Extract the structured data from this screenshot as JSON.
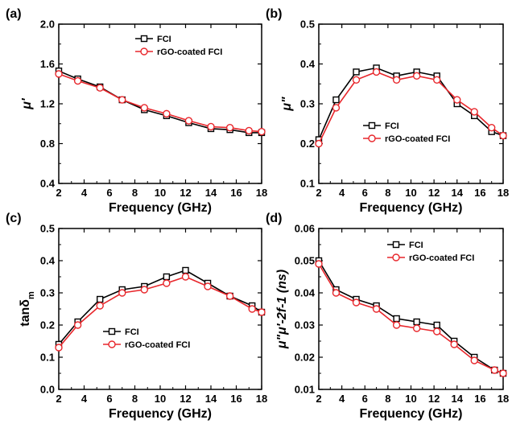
{
  "colors": {
    "fci": "#000000",
    "rgo": "#e8262b"
  },
  "chart_data": [
    {
      "panel": "(a)",
      "type": "line",
      "xlabel": "Frequency (GHz)",
      "ylabel": "μ'",
      "xlim": [
        2,
        18
      ],
      "ylim": [
        0.4,
        2.0
      ],
      "xticks": [
        "2",
        "4",
        "6",
        "8",
        "10",
        "12",
        "14",
        "16",
        "18"
      ],
      "yticks": [
        "0.4",
        "0.8",
        "1.2",
        "1.6",
        "2.0"
      ],
      "legend": "top-right",
      "series": [
        {
          "name": "FCI",
          "marker": "square",
          "x": [
            2,
            3.5,
            5.25,
            7,
            8.75,
            10.5,
            12.25,
            14,
            15.5,
            17,
            18
          ],
          "y": [
            1.53,
            1.45,
            1.37,
            1.24,
            1.14,
            1.08,
            1.01,
            0.95,
            0.94,
            0.91,
            0.91
          ]
        },
        {
          "name": "rGO-coated FCI",
          "marker": "circle",
          "x": [
            2,
            3.5,
            5.25,
            7,
            8.75,
            10.5,
            12.25,
            14,
            15.5,
            17,
            18
          ],
          "y": [
            1.5,
            1.43,
            1.36,
            1.24,
            1.16,
            1.1,
            1.03,
            0.97,
            0.96,
            0.93,
            0.92
          ]
        }
      ]
    },
    {
      "panel": "(b)",
      "type": "line",
      "xlabel": "Frequency (GHz)",
      "ylabel": "μ\"",
      "xlim": [
        2,
        18
      ],
      "ylim": [
        0.1,
        0.5
      ],
      "xticks": [
        "2",
        "4",
        "6",
        "8",
        "10",
        "12",
        "14",
        "16",
        "18"
      ],
      "yticks": [
        "0.1",
        "0.2",
        "0.3",
        "0.4",
        "0.5"
      ],
      "legend": "bottom-center",
      "series": [
        {
          "name": "FCI",
          "marker": "square",
          "x": [
            2,
            3.5,
            5.25,
            7,
            8.75,
            10.5,
            12.25,
            14,
            15.5,
            17,
            18
          ],
          "y": [
            0.21,
            0.31,
            0.38,
            0.39,
            0.37,
            0.38,
            0.37,
            0.3,
            0.27,
            0.23,
            0.22
          ]
        },
        {
          "name": "rGO-coated FCI",
          "marker": "circle",
          "x": [
            2,
            3.5,
            5.25,
            7,
            8.75,
            10.5,
            12.25,
            14,
            15.5,
            17,
            18
          ],
          "y": [
            0.2,
            0.29,
            0.36,
            0.38,
            0.36,
            0.37,
            0.36,
            0.31,
            0.28,
            0.24,
            0.22
          ]
        }
      ]
    },
    {
      "panel": "(c)",
      "type": "line",
      "xlabel": "Frequency (GHz)",
      "ylabel": "tanδm",
      "ylabel_main": "tanδ",
      "ylabel_sub": "m",
      "xlim": [
        2,
        18
      ],
      "ylim": [
        0.0,
        0.5
      ],
      "xticks": [
        "2",
        "4",
        "6",
        "8",
        "10",
        "12",
        "14",
        "16",
        "18"
      ],
      "yticks": [
        "0.0",
        "0.1",
        "0.2",
        "0.3",
        "0.4",
        "0.5"
      ],
      "legend": "bottom-center",
      "series": [
        {
          "name": "FCI",
          "marker": "square",
          "x": [
            2,
            3.5,
            5.25,
            7,
            8.75,
            10.5,
            12,
            13.75,
            15.5,
            17.25,
            18
          ],
          "y": [
            0.14,
            0.21,
            0.28,
            0.31,
            0.32,
            0.35,
            0.37,
            0.33,
            0.29,
            0.26,
            0.24
          ]
        },
        {
          "name": "rGO-coated FCI",
          "marker": "circle",
          "x": [
            2,
            3.5,
            5.25,
            7,
            8.75,
            10.5,
            12,
            13.75,
            15.5,
            17.25,
            18
          ],
          "y": [
            0.13,
            0.2,
            0.26,
            0.3,
            0.31,
            0.33,
            0.35,
            0.32,
            0.29,
            0.25,
            0.24
          ]
        }
      ]
    },
    {
      "panel": "(d)",
      "type": "line",
      "xlabel": "Frequency (GHz)",
      "ylabel": "μ\"μ'-2f-1 (ns)",
      "xlim": [
        2,
        18
      ],
      "ylim": [
        0.01,
        0.06
      ],
      "xticks": [
        "2",
        "4",
        "6",
        "8",
        "10",
        "12",
        "14",
        "16",
        "18"
      ],
      "yticks": [
        "0.01",
        "0.02",
        "0.03",
        "0.04",
        "0.05",
        "0.06"
      ],
      "legend": "top-center",
      "series": [
        {
          "name": "FCI",
          "marker": "square",
          "x": [
            2,
            3.5,
            5.25,
            7,
            8.75,
            10.5,
            12.25,
            13.75,
            15.5,
            17.25,
            18
          ],
          "y": [
            0.05,
            0.041,
            0.038,
            0.036,
            0.032,
            0.031,
            0.03,
            0.025,
            0.02,
            0.016,
            0.015
          ]
        },
        {
          "name": "rGO-coated FCI",
          "marker": "circle",
          "x": [
            2,
            3.5,
            5.25,
            7,
            8.75,
            10.5,
            12.25,
            13.75,
            15.5,
            17.25,
            18
          ],
          "y": [
            0.049,
            0.04,
            0.037,
            0.035,
            0.03,
            0.029,
            0.028,
            0.024,
            0.019,
            0.016,
            0.015
          ]
        }
      ]
    }
  ]
}
